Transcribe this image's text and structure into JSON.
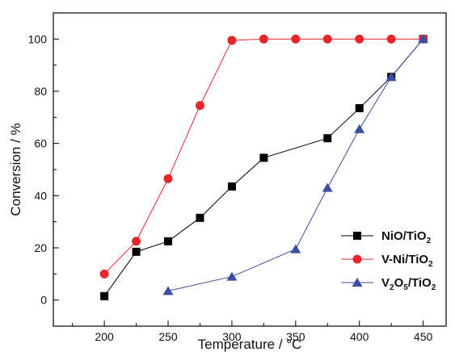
{
  "chart_data": {
    "type": "line",
    "title": "",
    "xlabel": "Temperature / °C",
    "ylabel": "Conversion / %",
    "xlim": [
      160,
      468
    ],
    "ylim": [
      -10,
      110
    ],
    "xticks": [
      200,
      250,
      300,
      350,
      400,
      450
    ],
    "yticks": [
      0,
      20,
      40,
      60,
      80,
      100
    ],
    "grid": false,
    "legend_position": "bottom-right",
    "series": [
      {
        "name": "NiO/TiO",
        "name_sub": "2",
        "marker": "square",
        "color": "#000000",
        "x": [
          200,
          225,
          250,
          275,
          300,
          325,
          375,
          400,
          425,
          450
        ],
        "y": [
          1.5,
          18.5,
          22.5,
          31.5,
          43.5,
          54.5,
          62,
          73.5,
          85.5,
          100
        ]
      },
      {
        "name": "V-Ni/TiO",
        "name_sub": "2",
        "marker": "circle",
        "color": "#e8252a",
        "x": [
          200,
          225,
          250,
          275,
          300,
          325,
          350,
          375,
          400,
          425,
          450
        ],
        "y": [
          10,
          22.5,
          46.5,
          74.5,
          99.5,
          100,
          100,
          100,
          100,
          100,
          100
        ]
      },
      {
        "name": "V",
        "name_parts": [
          "V",
          "2",
          "O",
          "5",
          "/TiO",
          "2"
        ],
        "marker": "triangle",
        "color": "#3a4fa3",
        "x": [
          250,
          300,
          350,
          375,
          400,
          425,
          450
        ],
        "y": [
          3.5,
          9,
          19.5,
          43,
          65.5,
          85.5,
          100
        ]
      }
    ]
  }
}
